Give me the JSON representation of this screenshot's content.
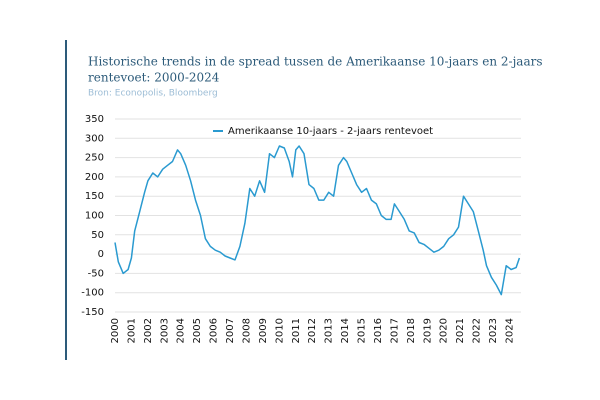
{
  "chart_data": {
    "type": "line",
    "title_lines": [
      "Historische trends in de spread tussen de Amerikaanse 10-jaars en 2-jaars",
      "rentevoet: 2000-2024"
    ],
    "subtitle": "Bron: Econopolis, Bloomberg",
    "x": [
      2000.0,
      2000.2,
      2000.5,
      2000.8,
      2001.0,
      2001.2,
      2001.5,
      2001.8,
      2002.0,
      2002.3,
      2002.6,
      2002.9,
      2003.2,
      2003.5,
      2003.8,
      2004.0,
      2004.3,
      2004.6,
      2004.9,
      2005.2,
      2005.5,
      2005.8,
      2006.1,
      2006.4,
      2006.7,
      2007.0,
      2007.3,
      2007.6,
      2007.9,
      2008.2,
      2008.5,
      2008.8,
      2009.1,
      2009.4,
      2009.7,
      2010.0,
      2010.3,
      2010.6,
      2010.8,
      2011.0,
      2011.2,
      2011.5,
      2011.8,
      2012.1,
      2012.4,
      2012.7,
      2013.0,
      2013.3,
      2013.6,
      2013.9,
      2014.1,
      2014.4,
      2014.7,
      2015.0,
      2015.3,
      2015.6,
      2015.9,
      2016.2,
      2016.5,
      2016.8,
      2017.0,
      2017.3,
      2017.6,
      2017.9,
      2018.2,
      2018.5,
      2018.8,
      2019.1,
      2019.4,
      2019.7,
      2020.0,
      2020.3,
      2020.6,
      2020.9,
      2021.2,
      2021.5,
      2021.8,
      2022.1,
      2022.4,
      2022.6,
      2022.9,
      2023.2,
      2023.5,
      2023.8,
      2024.1,
      2024.4,
      2024.6
    ],
    "series": [
      {
        "name": "Amerikaanse 10-jaars - 2-jaars rentevoet",
        "color": "#2a9ad0",
        "values": [
          30,
          -20,
          -50,
          -40,
          -10,
          60,
          110,
          160,
          190,
          210,
          200,
          220,
          230,
          240,
          270,
          260,
          230,
          190,
          140,
          100,
          40,
          20,
          10,
          5,
          -5,
          -10,
          -15,
          20,
          80,
          170,
          150,
          190,
          160,
          260,
          250,
          280,
          275,
          240,
          200,
          270,
          280,
          260,
          180,
          170,
          140,
          140,
          160,
          150,
          230,
          250,
          240,
          210,
          180,
          160,
          170,
          140,
          130,
          100,
          90,
          90,
          130,
          110,
          90,
          60,
          55,
          30,
          25,
          15,
          5,
          10,
          20,
          40,
          50,
          70,
          150,
          130,
          110,
          60,
          10,
          -30,
          -60,
          -80,
          -105,
          -30,
          -40,
          -35,
          -10
        ]
      }
    ],
    "xlim": [
      2000,
      2024.7
    ],
    "xticks": [
      2000,
      2001,
      2002,
      2003,
      2004,
      2005,
      2006,
      2007,
      2008,
      2009,
      2010,
      2011,
      2012,
      2013,
      2014,
      2015,
      2016,
      2017,
      2018,
      2019,
      2020,
      2021,
      2022,
      2023,
      2024
    ],
    "ylim": [
      -150,
      350
    ],
    "yticks": [
      -150,
      -100,
      -50,
      0,
      50,
      100,
      150,
      200,
      250,
      300,
      350
    ],
    "grid": true
  }
}
